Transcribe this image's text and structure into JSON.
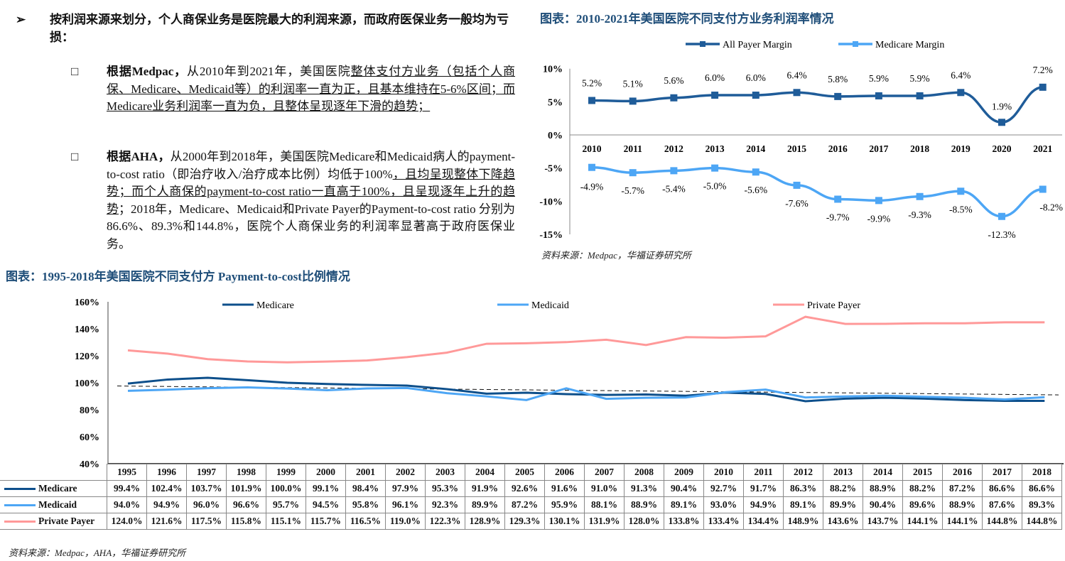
{
  "text": {
    "heading_bullet": "➢",
    "heading": "按利润来源来划分，个人商保业务是医院最大的利润来源，而政府医保业务一般均为亏损：",
    "p1_lead": "根据Medpac，",
    "p1_a": "从2010年到2021年，美国医院",
    "p1_b": "整体支付方业务（包括个人商保、Medicare、Medicaid等）的利润率一直为正，且基本维持在5-6%区间；而Medicare业务利润率一直为负，且整体呈现逐年下滑的趋势；",
    "p2_lead": "根据AHA，",
    "p2_a": "从2000年到2018年，美国医院Medicare和Medicaid病人的payment-to-cost ratio（即治疗收入/治疗成本比例）均低于100%",
    "p2_b": "，且均呈现整体下降趋势；而个人商保的payment-to-cost ratio一直高于100%，且呈现逐年上升的趋势",
    "p2_c": "；2018年，Medicare、Medicaid和Private Payer的Payment-to-cost ratio 分别为86.6%、89.3%和144.8%，医院个人商保业务的利润率显著高于政府医保业务。",
    "checkbox": "□"
  },
  "chart_data": [
    {
      "type": "line",
      "title": "图表：2010-2021年美国医院不同支付方业务利润率情况",
      "source": "资料来源：Medpac，华福证券研究所",
      "categories": [
        "2010",
        "2011",
        "2012",
        "2013",
        "2014",
        "2015",
        "2016",
        "2017",
        "2018",
        "2019",
        "2020",
        "2021"
      ],
      "yticks": [
        "10%",
        "5%",
        "0%",
        "-5%",
        "-10%",
        "-15%"
      ],
      "ylim": [
        -15,
        10
      ],
      "series": [
        {
          "name": "All Payer Margin",
          "color": "#1f5c99",
          "values": [
            5.2,
            5.1,
            5.6,
            6.0,
            6.0,
            6.4,
            5.8,
            5.9,
            5.9,
            6.4,
            1.9,
            7.2
          ],
          "labels": [
            "5.2%",
            "5.1%",
            "5.6%",
            "6.0%",
            "6.0%",
            "6.4%",
            "5.8%",
            "5.9%",
            "5.9%",
            "6.4%",
            "1.9%",
            "7.2%"
          ]
        },
        {
          "name": "Medicare Margin",
          "color": "#4da6f5",
          "values": [
            -4.9,
            -5.7,
            -5.4,
            -5.0,
            -5.6,
            -7.6,
            -9.7,
            -9.9,
            -9.3,
            -8.5,
            -12.3,
            -8.2
          ],
          "labels": [
            "-4.9%",
            "-5.7%",
            "-5.4%",
            "-5.0%",
            "-5.6%",
            "-7.6%",
            "-9.7%",
            "-9.9%",
            "-9.3%",
            "-8.5%",
            "-12.3%",
            "-8.2%"
          ]
        }
      ]
    },
    {
      "type": "line",
      "title": "图表：1995-2018年美国医院不同支付方 Payment-to-cost比例情况",
      "source": "资料来源：Medpac，AHA，华福证券研究所",
      "categories": [
        "1995",
        "1996",
        "1997",
        "1998",
        "1999",
        "2000",
        "2001",
        "2002",
        "2003",
        "2004",
        "2005",
        "2006",
        "2007",
        "2008",
        "2009",
        "2010",
        "2011",
        "2012",
        "2013",
        "2014",
        "2015",
        "2016",
        "2017",
        "2018"
      ],
      "yticks": [
        "160%",
        "140%",
        "120%",
        "100%",
        "80%",
        "60%",
        "40%"
      ],
      "ylim": [
        40,
        160
      ],
      "series": [
        {
          "name": "Medicare",
          "color": "#0d4f8b",
          "values": [
            99.4,
            102.4,
            103.7,
            101.9,
            100.0,
            99.1,
            98.4,
            97.9,
            95.3,
            91.9,
            92.6,
            91.6,
            91.0,
            91.3,
            90.4,
            92.7,
            91.7,
            86.3,
            88.2,
            88.9,
            88.2,
            87.2,
            86.6,
            86.6
          ],
          "labels": [
            "99.4%",
            "102.4%",
            "103.7%",
            "101.9%",
            "100.0%",
            "99.1%",
            "98.4%",
            "97.9%",
            "95.3%",
            "91.9%",
            "92.6%",
            "91.6%",
            "91.0%",
            "91.3%",
            "90.4%",
            "92.7%",
            "91.7%",
            "86.3%",
            "88.2%",
            "88.9%",
            "88.2%",
            "87.2%",
            "86.6%",
            "86.6%"
          ]
        },
        {
          "name": "Medicaid",
          "color": "#4da6f5",
          "values": [
            94.0,
            94.9,
            96.0,
            96.6,
            95.7,
            94.5,
            95.8,
            96.1,
            92.3,
            89.9,
            87.2,
            95.9,
            88.1,
            88.9,
            89.1,
            93.0,
            94.9,
            89.1,
            89.9,
            90.4,
            89.6,
            88.9,
            87.6,
            89.3
          ],
          "labels": [
            "94.0%",
            "94.9%",
            "96.0%",
            "96.6%",
            "95.7%",
            "94.5%",
            "95.8%",
            "96.1%",
            "92.3%",
            "89.9%",
            "87.2%",
            "95.9%",
            "88.1%",
            "88.9%",
            "89.1%",
            "93.0%",
            "94.9%",
            "89.1%",
            "89.9%",
            "90.4%",
            "89.6%",
            "88.9%",
            "87.6%",
            "89.3%"
          ]
        },
        {
          "name": "Private Payer",
          "color": "#ff9999",
          "values": [
            124.0,
            121.6,
            117.5,
            115.8,
            115.1,
            115.7,
            116.5,
            119.0,
            122.3,
            128.9,
            129.3,
            130.1,
            131.9,
            128.0,
            133.8,
            133.4,
            134.4,
            148.9,
            143.6,
            143.7,
            144.1,
            144.1,
            144.8,
            144.8
          ],
          "labels": [
            "124.0%",
            "121.6%",
            "117.5%",
            "115.8%",
            "115.1%",
            "115.7%",
            "116.5%",
            "119.0%",
            "122.3%",
            "128.9%",
            "129.3%",
            "130.1%",
            "131.9%",
            "128.0%",
            "133.8%",
            "133.4%",
            "134.4%",
            "148.9%",
            "143.6%",
            "143.7%",
            "144.1%",
            "144.1%",
            "144.8%",
            "144.8%"
          ]
        }
      ]
    }
  ]
}
